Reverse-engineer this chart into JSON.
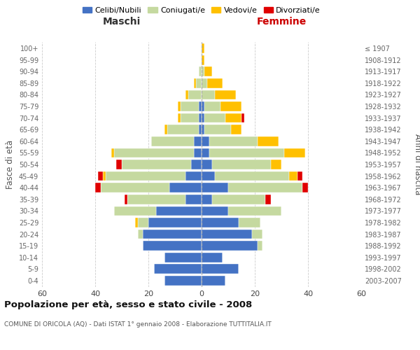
{
  "age_groups": [
    "0-4",
    "5-9",
    "10-14",
    "15-19",
    "20-24",
    "25-29",
    "30-34",
    "35-39",
    "40-44",
    "45-49",
    "50-54",
    "55-59",
    "60-64",
    "65-69",
    "70-74",
    "75-79",
    "80-84",
    "85-89",
    "90-94",
    "95-99",
    "100+"
  ],
  "birth_years": [
    "2003-2007",
    "1998-2002",
    "1993-1997",
    "1988-1992",
    "1983-1987",
    "1978-1982",
    "1973-1977",
    "1968-1972",
    "1963-1967",
    "1958-1962",
    "1953-1957",
    "1948-1952",
    "1943-1947",
    "1938-1942",
    "1933-1937",
    "1928-1932",
    "1923-1927",
    "1918-1922",
    "1913-1917",
    "1908-1912",
    "≤ 1907"
  ],
  "maschi": {
    "celibi": [
      14,
      18,
      14,
      22,
      22,
      20,
      17,
      6,
      12,
      6,
      4,
      3,
      3,
      1,
      1,
      1,
      0,
      0,
      0,
      0,
      0
    ],
    "coniugati": [
      0,
      0,
      0,
      0,
      2,
      4,
      16,
      22,
      26,
      30,
      26,
      30,
      16,
      12,
      7,
      7,
      5,
      2,
      1,
      0,
      0
    ],
    "vedovi": [
      0,
      0,
      0,
      0,
      0,
      1,
      0,
      0,
      0,
      1,
      0,
      1,
      0,
      1,
      1,
      1,
      1,
      1,
      0,
      0,
      0
    ],
    "divorziati": [
      0,
      0,
      0,
      0,
      0,
      0,
      0,
      1,
      2,
      2,
      2,
      0,
      0,
      0,
      0,
      0,
      0,
      0,
      0,
      0,
      0
    ]
  },
  "femmine": {
    "nubili": [
      9,
      14,
      8,
      21,
      19,
      14,
      10,
      4,
      10,
      5,
      4,
      3,
      3,
      1,
      1,
      1,
      0,
      0,
      0,
      0,
      0
    ],
    "coniugate": [
      0,
      0,
      0,
      2,
      4,
      8,
      20,
      20,
      28,
      28,
      22,
      28,
      18,
      10,
      8,
      6,
      5,
      2,
      1,
      0,
      0
    ],
    "vedove": [
      0,
      0,
      0,
      0,
      0,
      0,
      0,
      0,
      0,
      3,
      4,
      8,
      8,
      4,
      6,
      8,
      8,
      6,
      3,
      1,
      1
    ],
    "divorziate": [
      0,
      0,
      0,
      0,
      0,
      0,
      0,
      2,
      2,
      2,
      0,
      0,
      0,
      0,
      1,
      0,
      0,
      0,
      0,
      0,
      0
    ]
  },
  "colors": {
    "celibi_nubili": "#4472c4",
    "coniugati": "#c5d9a0",
    "vedovi": "#ffc000",
    "divorziati": "#e00000"
  },
  "xlim": 60,
  "title": "Popolazione per età, sesso e stato civile - 2008",
  "subtitle": "COMUNE DI ORICOLA (AQ) - Dati ISTAT 1° gennaio 2008 - Elaborazione TUTTITALIA.IT",
  "ylabel_left": "Fasce di età",
  "ylabel_right": "Anni di nascita",
  "xlabel_left": "Maschi",
  "xlabel_right": "Femmine",
  "legend_labels": [
    "Celibi/Nubili",
    "Coniugati/e",
    "Vedovi/e",
    "Divorziati/e"
  ],
  "bg_color": "#ffffff",
  "grid_color": "#cccccc",
  "bar_height": 0.82
}
